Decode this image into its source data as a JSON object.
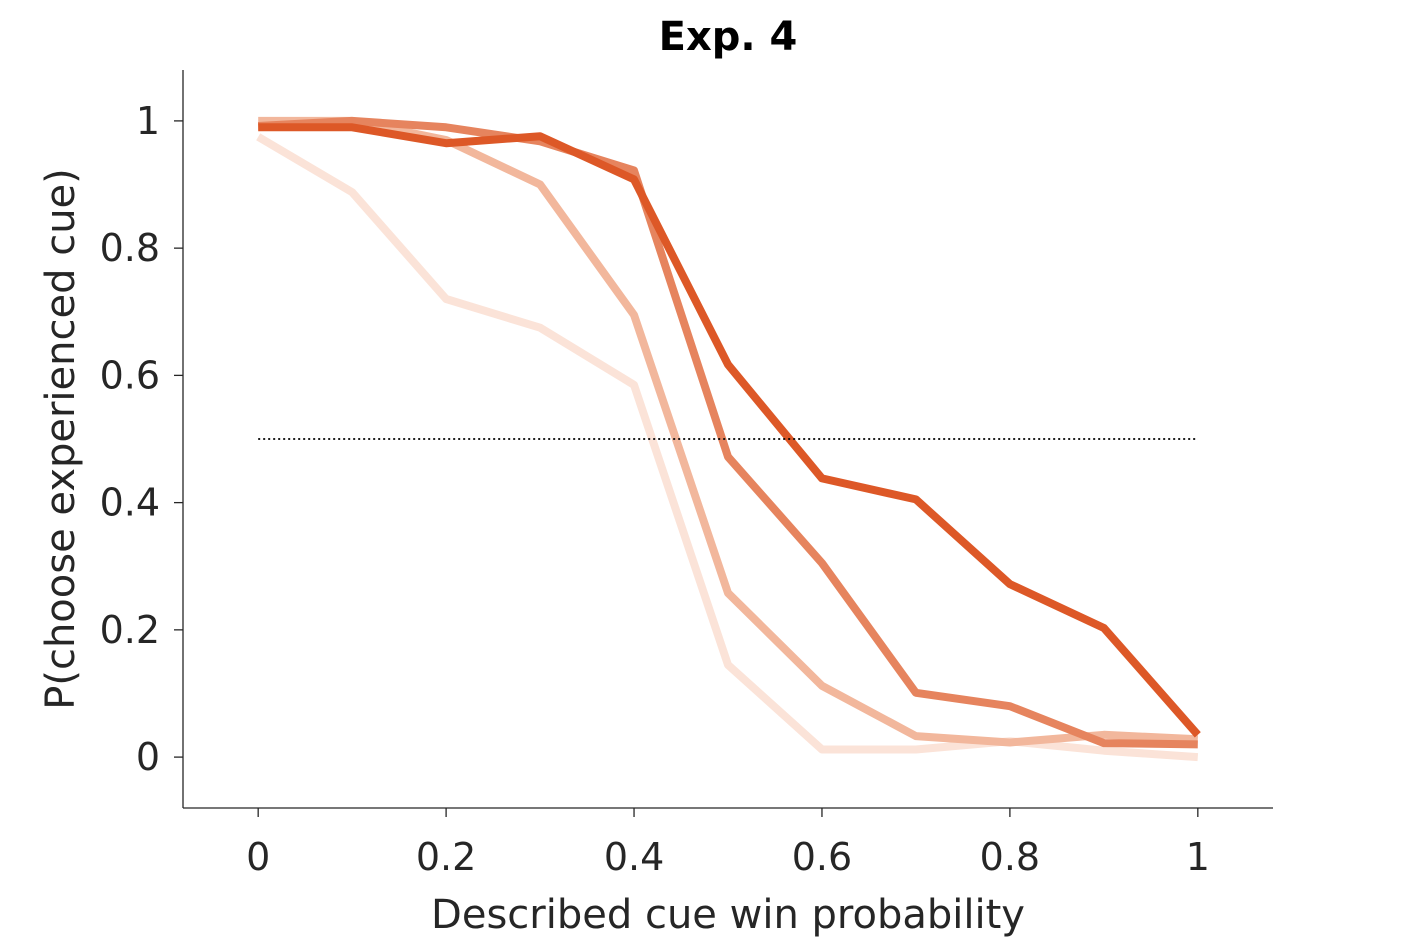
{
  "chart_data": {
    "type": "line",
    "title": "Exp. 4",
    "xlabel": "Described cue win probability",
    "ylabel": "P(choose experienced cue)",
    "xlim": [
      -0.08,
      1.08
    ],
    "ylim": [
      -0.08,
      1.08
    ],
    "xticks": [
      0,
      0.2,
      0.4,
      0.6,
      0.8,
      1
    ],
    "xtick_labels": [
      "0",
      "0.2",
      "0.4",
      "0.6",
      "0.8",
      "1"
    ],
    "yticks": [
      0,
      0.2,
      0.4,
      0.6,
      0.8,
      1
    ],
    "ytick_labels": [
      "0",
      "0.2",
      "0.4",
      "0.6",
      "0.8",
      "1"
    ],
    "grid": false,
    "legend": "none",
    "x": [
      0,
      0.1,
      0.2,
      0.3,
      0.4,
      0.5,
      0.6,
      0.7,
      0.8,
      0.9,
      1
    ],
    "reference_line": {
      "y": 0.5,
      "x_range": [
        0,
        1
      ],
      "style": "dotted",
      "color": "#000000"
    },
    "series": [
      {
        "color": "#fbe3d8",
        "values": [
          0.975,
          0.888,
          0.72,
          0.675,
          0.585,
          0.145,
          0.012,
          0.012,
          0.025,
          0.01,
          0.0
        ]
      },
      {
        "color": "#f2b79c",
        "values": [
          1.0,
          1.0,
          0.97,
          0.9,
          0.695,
          0.258,
          0.112,
          0.033,
          0.023,
          0.035,
          0.028
        ]
      },
      {
        "color": "#e6845e",
        "values": [
          0.992,
          1.0,
          0.99,
          0.968,
          0.922,
          0.472,
          0.305,
          0.101,
          0.08,
          0.022,
          0.02
        ]
      },
      {
        "color": "#dd5827",
        "values": [
          0.99,
          0.99,
          0.965,
          0.976,
          0.908,
          0.617,
          0.438,
          0.405,
          0.272,
          0.203,
          0.035
        ]
      }
    ]
  }
}
